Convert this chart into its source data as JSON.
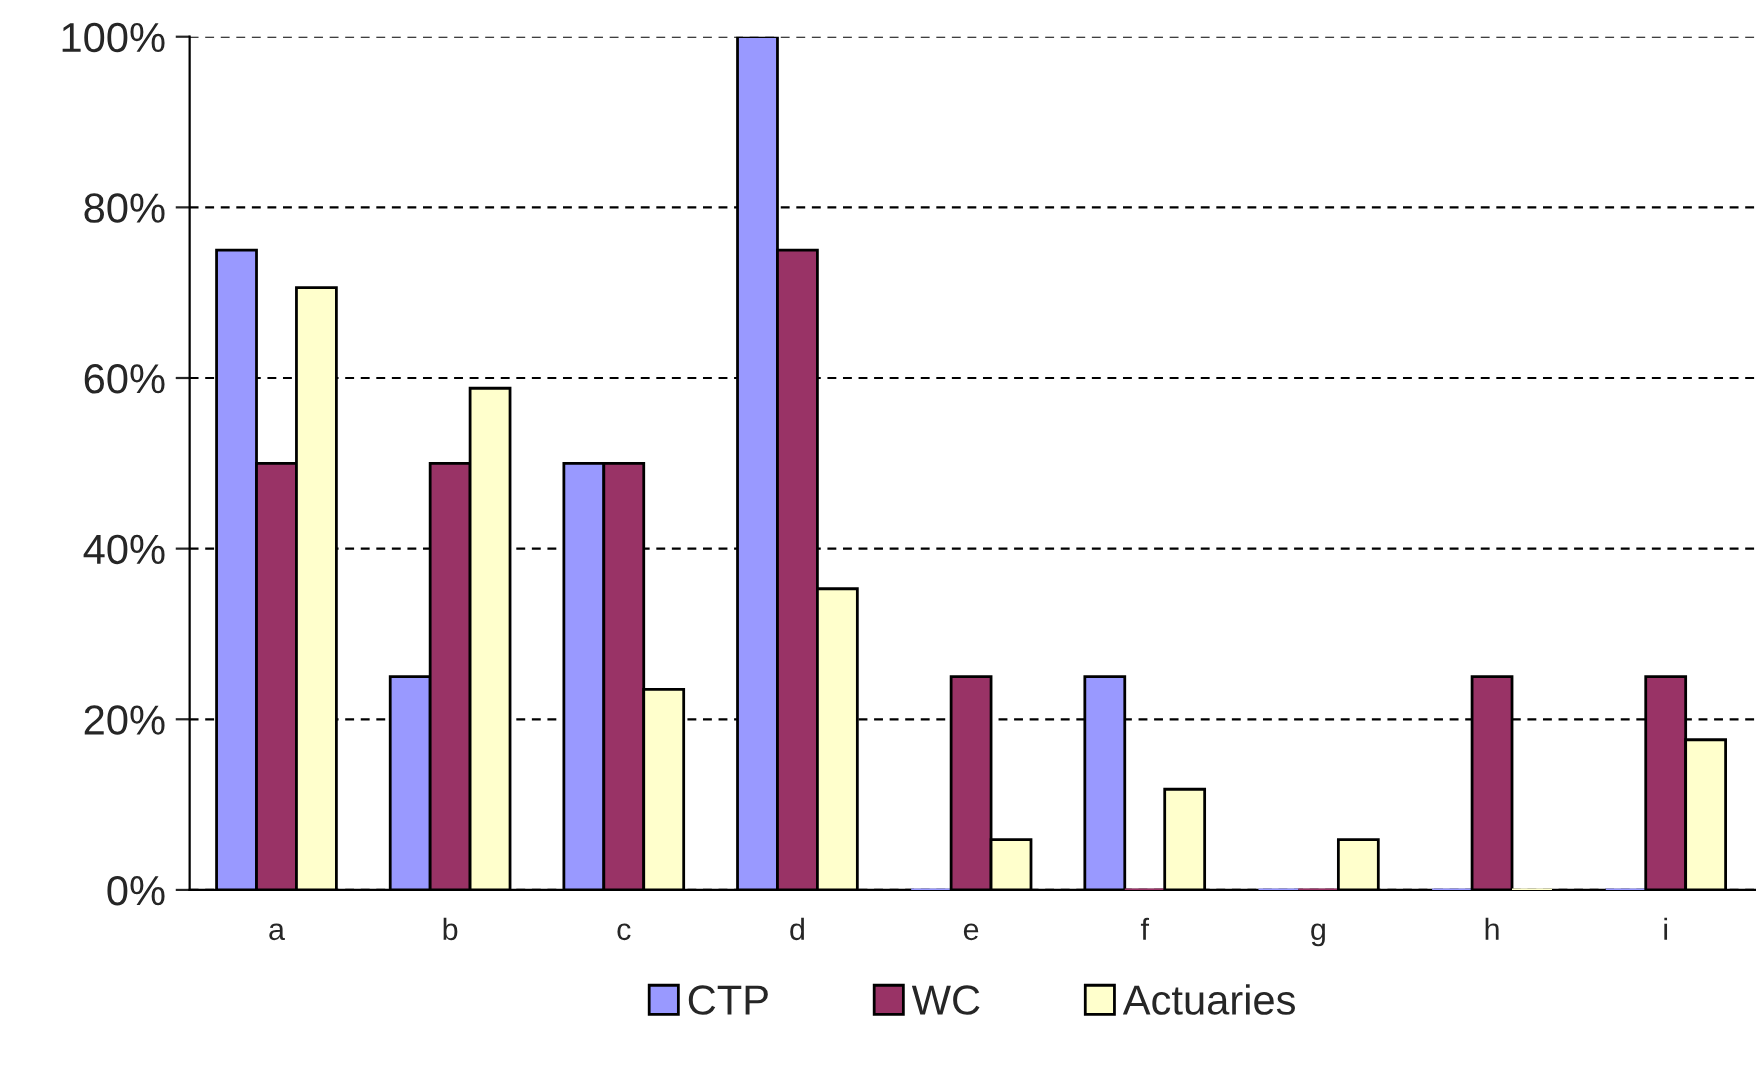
{
  "chart_data": {
    "type": "bar",
    "categories": [
      "a",
      "b",
      "c",
      "d",
      "e",
      "f",
      "g",
      "h",
      "i"
    ],
    "series": [
      {
        "name": "CTP",
        "color": "#9999ff",
        "values": [
          75,
          25,
          50,
          100,
          0,
          25,
          0,
          0,
          0
        ]
      },
      {
        "name": "WC",
        "color": "#993366",
        "values": [
          50,
          50,
          50,
          75,
          25,
          0,
          0,
          25,
          25
        ]
      },
      {
        "name": "Actuaries",
        "color": "#ffffcc",
        "values": [
          70.6,
          58.8,
          23.5,
          35.3,
          5.9,
          11.8,
          5.9,
          0,
          17.6
        ]
      }
    ],
    "ylim": [
      0,
      100
    ],
    "yticks": [
      {
        "value": 0,
        "label": "0%"
      },
      {
        "value": 20,
        "label": "20%"
      },
      {
        "value": 40,
        "label": "40%"
      },
      {
        "value": 60,
        "label": "60%"
      },
      {
        "value": 80,
        "label": "80%"
      },
      {
        "value": 100,
        "label": "100%"
      }
    ],
    "grid": "y",
    "legend": "bottom"
  }
}
